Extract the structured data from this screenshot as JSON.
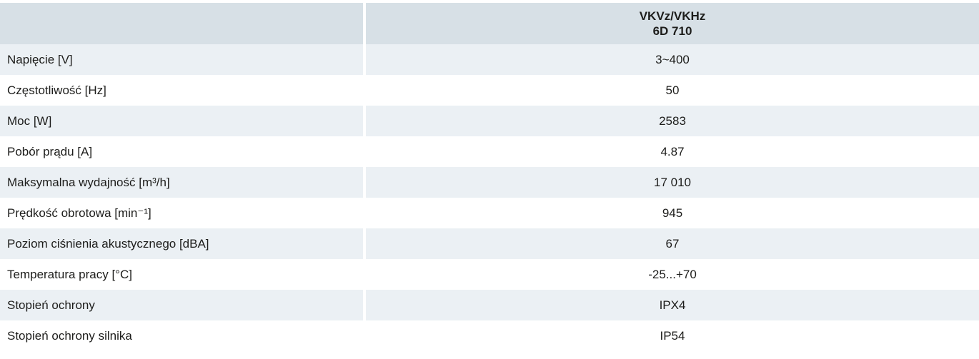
{
  "colors": {
    "header_bg": "#d7e0e6",
    "stripe_bg": "#ebf0f4",
    "text": "#1d1d1b"
  },
  "table": {
    "column_header": {
      "line1": "VKVz/VKHz",
      "line2": "6D 710"
    },
    "rows": [
      {
        "label": "Napięcie [V]",
        "value": "3~400"
      },
      {
        "label": "Częstotliwość [Hz]",
        "value": "50"
      },
      {
        "label": "Moc [W]",
        "value": "2583"
      },
      {
        "label": "Pobór prądu [A]",
        "value": "4.87"
      },
      {
        "label": "Maksymalna wydajność [m³/h]",
        "value": "17 010"
      },
      {
        "label": "Prędkość obrotowa [min⁻¹]",
        "value": "945"
      },
      {
        "label": "Poziom ciśnienia akustycznego [dBA]",
        "value": "67"
      },
      {
        "label": "Temperatura pracy [°C]",
        "value": "-25...+70"
      },
      {
        "label": "Stopień ochrony",
        "value": "IPX4"
      },
      {
        "label": "Stopień ochrony silnika",
        "value": "IP54"
      }
    ]
  }
}
